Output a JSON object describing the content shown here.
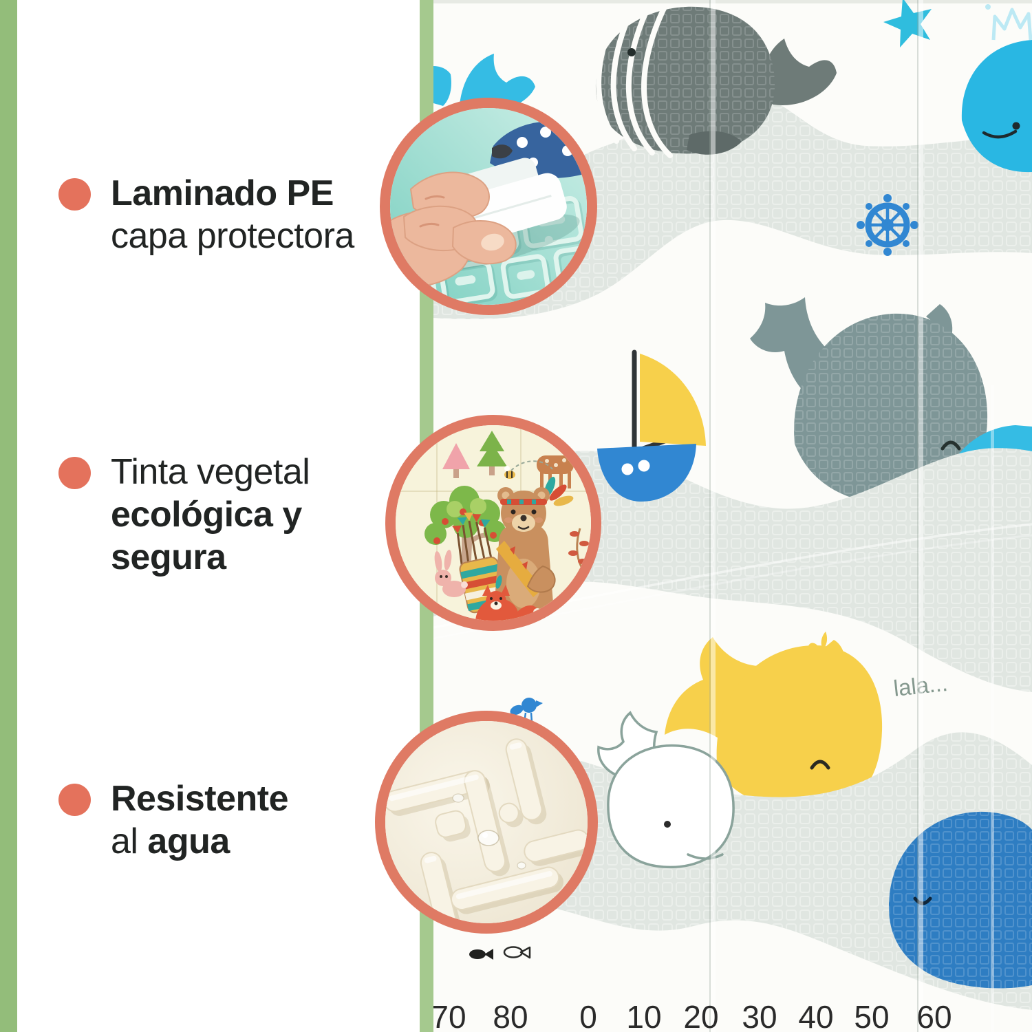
{
  "colors": {
    "accent_coral": "#E4725C",
    "ring_coral": "#DF7A64",
    "stripe_green_left": "#93BD7A",
    "stripe_green_right": "#A5C98E",
    "text_dark": "#212423",
    "wave_gray": "#E0E6E1",
    "whale_gray": "#6E7B78",
    "whale_slate": "#7E9697",
    "whale_cyan": "#35BCE4",
    "whale_blue": "#2E7DC2",
    "whale_yellow": "#F7D04B",
    "boat_blue": "#3187D2",
    "speech_gray": "#84988E",
    "ruler_dark": "#2A2A2A",
    "photo_bg": "#FCFCF9"
  },
  "features": [
    {
      "name": "laminado-pe",
      "lines": [
        [
          {
            "text": "Laminado PE",
            "bold": true
          }
        ],
        [
          {
            "text": "capa protectora",
            "bold": false
          }
        ]
      ]
    },
    {
      "name": "tinta-vegetal",
      "lines": [
        [
          {
            "text": "Tinta vegetal",
            "bold": false
          }
        ],
        [
          {
            "text": "ecológica y",
            "bold": true
          }
        ],
        [
          {
            "text": "segura",
            "bold": true
          }
        ]
      ]
    },
    {
      "name": "resistente-al-agua",
      "lines": [
        [
          {
            "text": "Resistente",
            "bold": true
          }
        ],
        [
          {
            "text": "al ",
            "bold": false
          },
          {
            "text": "agua",
            "bold": true
          }
        ]
      ]
    }
  ],
  "callouts": [
    {
      "name": "laminado-pe-closeup"
    },
    {
      "name": "tinta-vegetal-pattern"
    },
    {
      "name": "resistente-agua-texture"
    }
  ],
  "photo": {
    "speech": "lala...",
    "elements": [
      "blue-whale-tail",
      "gray-whale",
      "starfish",
      "crowned-whale",
      "ship-wheel",
      "sailboat",
      "slate-whale",
      "cyan-whale",
      "yellow-whale",
      "white-whale",
      "blue-whale",
      "blue-bird",
      "fish-pair",
      "play-mat-waves"
    ]
  },
  "ruler": {
    "values": [
      "70",
      "80",
      "0",
      "10",
      "20",
      "30",
      "40",
      "50",
      "60"
    ]
  }
}
